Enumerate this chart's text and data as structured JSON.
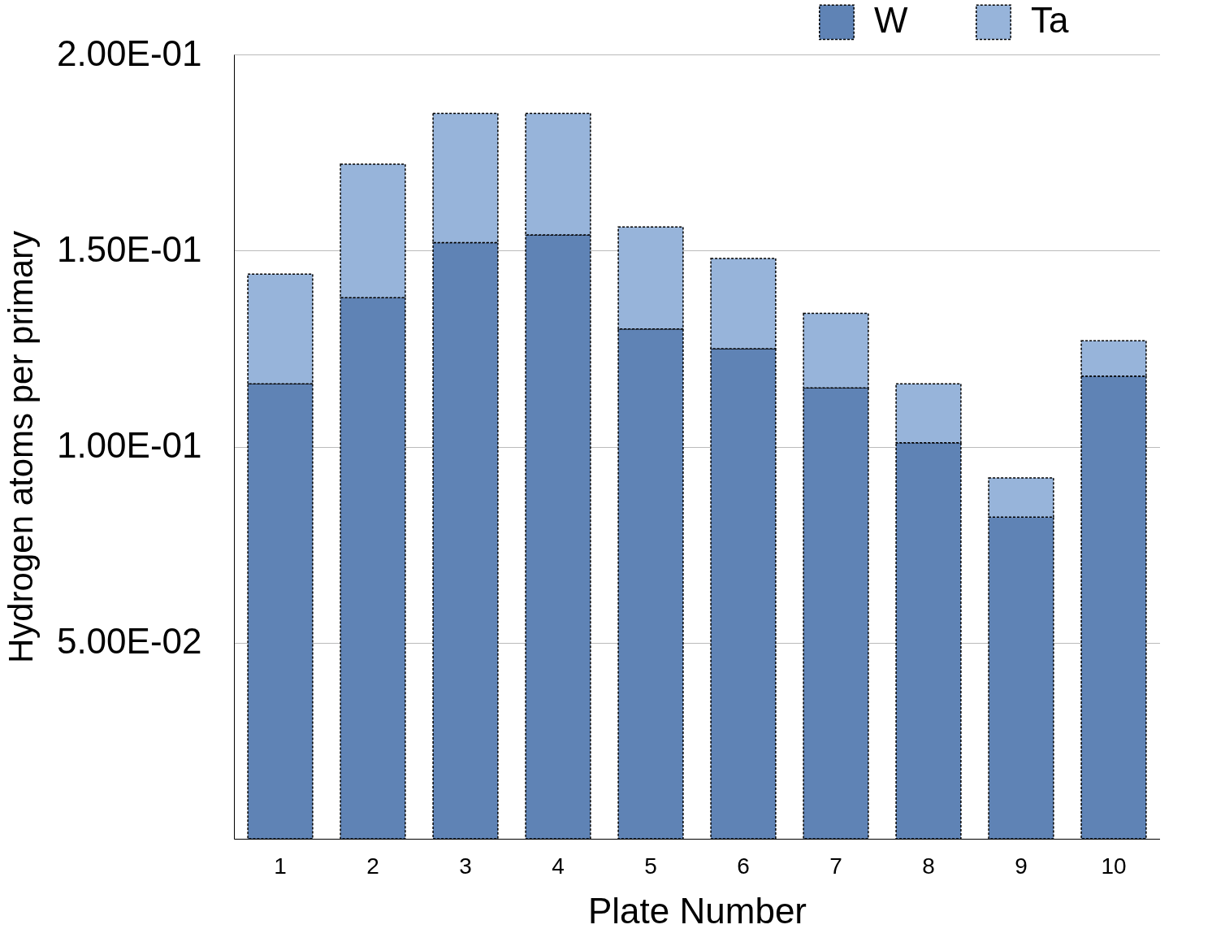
{
  "chart_data": {
    "type": "bar",
    "stacked": true,
    "xlabel": "Plate Number",
    "ylabel": "Hydrogen atoms per primary",
    "categories": [
      "1",
      "2",
      "3",
      "4",
      "5",
      "6",
      "7",
      "8",
      "9",
      "10"
    ],
    "series": [
      {
        "name": "W",
        "color": "#5f83b5",
        "values": [
          0.116,
          0.138,
          0.152,
          0.154,
          0.13,
          0.125,
          0.115,
          0.101,
          0.082,
          0.118
        ]
      },
      {
        "name": "Ta",
        "color": "#97b4da",
        "values": [
          0.028,
          0.034,
          0.033,
          0.031,
          0.026,
          0.023,
          0.019,
          0.015,
          0.01,
          0.009
        ]
      }
    ],
    "ylim": [
      0,
      0.2
    ],
    "yticks": [
      {
        "value": 0.05,
        "label": "5.00E-02"
      },
      {
        "value": 0.1,
        "label": "1.00E-01"
      },
      {
        "value": 0.15,
        "label": "1.50E-01"
      },
      {
        "value": 0.2,
        "label": "2.00E-01"
      }
    ],
    "grid": "y",
    "legend": "top right"
  }
}
